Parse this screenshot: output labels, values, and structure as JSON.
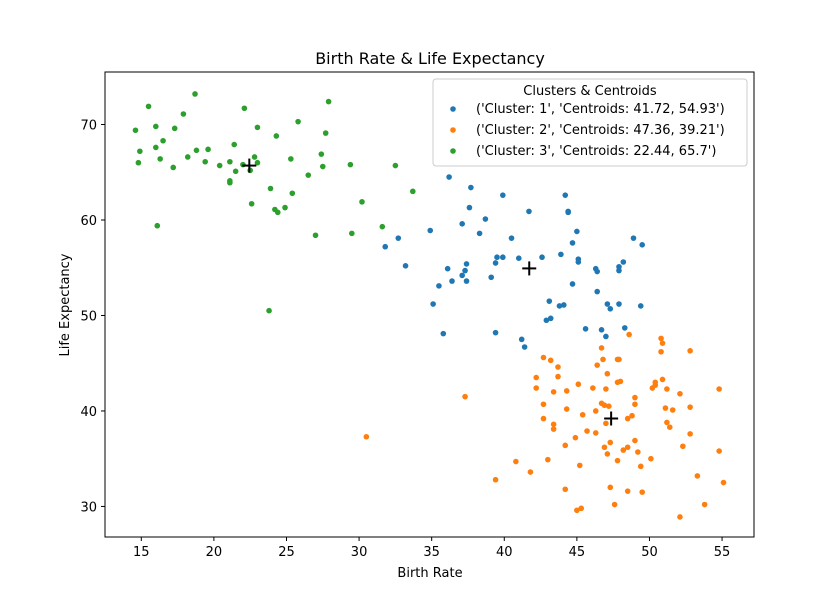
{
  "chart_data": {
    "type": "scatter",
    "title": "Birth Rate & Life Expectancy",
    "xlabel": "Birth Rate",
    "ylabel": "Life Expectancy",
    "xlim": [
      12.5,
      57.2
    ],
    "ylim": [
      26.8,
      75.5
    ],
    "xticks": [
      15,
      20,
      25,
      30,
      35,
      40,
      45,
      50,
      55
    ],
    "yticks": [
      30,
      40,
      50,
      60,
      70
    ],
    "grid": false,
    "legend": {
      "title": "Clusters & Centroids",
      "position": "top-right"
    },
    "series": [
      {
        "name": "('Cluster: 1', 'Centroids: 41.72, 54.93')",
        "color": "#1f77b4",
        "centroid": [
          41.72,
          54.93
        ],
        "points": [
          [
            36.2,
            64.5
          ],
          [
            37.7,
            63.4
          ],
          [
            39.9,
            62.6
          ],
          [
            44.2,
            62.6
          ],
          [
            44.4,
            60.9
          ],
          [
            44.4,
            60.8
          ],
          [
            41.7,
            60.9
          ],
          [
            37.6,
            61.3
          ],
          [
            38.7,
            60.1
          ],
          [
            37.1,
            59.6
          ],
          [
            38.3,
            58.6
          ],
          [
            34.9,
            58.9
          ],
          [
            32.7,
            58.1
          ],
          [
            31.8,
            57.2
          ],
          [
            40.5,
            58.1
          ],
          [
            44.7,
            57.6
          ],
          [
            45.0,
            58.8
          ],
          [
            48.9,
            58.1
          ],
          [
            49.5,
            57.4
          ],
          [
            36.1,
            54.9
          ],
          [
            37.4,
            55.4
          ],
          [
            37.3,
            54.7
          ],
          [
            37.1,
            54.2
          ],
          [
            36.4,
            53.6
          ],
          [
            37.4,
            53.6
          ],
          [
            35.5,
            53.1
          ],
          [
            39.5,
            56.1
          ],
          [
            39.9,
            56.1
          ],
          [
            39.4,
            55.5
          ],
          [
            41.0,
            56.0
          ],
          [
            42.6,
            56.1
          ],
          [
            43.9,
            56.4
          ],
          [
            45.1,
            55.9
          ],
          [
            45.1,
            55.6
          ],
          [
            46.3,
            54.9
          ],
          [
            46.4,
            54.6
          ],
          [
            47.9,
            55.1
          ],
          [
            48.2,
            55.6
          ],
          [
            47.9,
            54.7
          ],
          [
            33.2,
            55.2
          ],
          [
            39.1,
            54.0
          ],
          [
            44.7,
            53.3
          ],
          [
            46.4,
            52.5
          ],
          [
            35.1,
            51.2
          ],
          [
            43.1,
            51.5
          ],
          [
            43.8,
            51.0
          ],
          [
            44.1,
            51.1
          ],
          [
            47.1,
            51.2
          ],
          [
            47.3,
            50.7
          ],
          [
            47.9,
            51.2
          ],
          [
            49.4,
            51.0
          ],
          [
            42.9,
            49.5
          ],
          [
            43.2,
            49.7
          ],
          [
            48.3,
            48.7
          ],
          [
            45.6,
            48.6
          ],
          [
            46.7,
            48.5
          ],
          [
            35.8,
            48.1
          ],
          [
            39.4,
            48.2
          ],
          [
            47.0,
            47.8
          ],
          [
            41.2,
            47.5
          ],
          [
            41.4,
            46.7
          ]
        ]
      },
      {
        "name": "('Cluster: 2', 'Centroids: 47.36, 39.21')",
        "color": "#ff7f0e",
        "centroid": [
          47.36,
          39.21
        ],
        "points": [
          [
            48.6,
            48.0
          ],
          [
            50.8,
            47.6
          ],
          [
            50.9,
            47.1
          ],
          [
            50.8,
            46.2
          ],
          [
            46.7,
            46.6
          ],
          [
            52.8,
            46.3
          ],
          [
            46.8,
            45.4
          ],
          [
            47.8,
            45.4
          ],
          [
            47.9,
            45.4
          ],
          [
            42.7,
            45.6
          ],
          [
            43.2,
            45.3
          ],
          [
            43.7,
            44.6
          ],
          [
            46.4,
            44.8
          ],
          [
            47.1,
            43.9
          ],
          [
            43.7,
            43.6
          ],
          [
            42.2,
            43.5
          ],
          [
            50.4,
            43.0
          ],
          [
            50.2,
            42.4
          ],
          [
            50.4,
            42.7
          ],
          [
            50.9,
            43.3
          ],
          [
            51.2,
            42.3
          ],
          [
            47.8,
            43.0
          ],
          [
            48.0,
            43.1
          ],
          [
            45.1,
            42.8
          ],
          [
            46.1,
            42.4
          ],
          [
            47.0,
            42.3
          ],
          [
            42.2,
            42.4
          ],
          [
            43.4,
            42.0
          ],
          [
            44.3,
            42.1
          ],
          [
            52.1,
            41.8
          ],
          [
            49.0,
            41.4
          ],
          [
            54.8,
            42.3
          ],
          [
            46.7,
            40.8
          ],
          [
            46.9,
            40.6
          ],
          [
            47.2,
            40.5
          ],
          [
            49.0,
            40.7
          ],
          [
            42.7,
            40.7
          ],
          [
            44.3,
            40.2
          ],
          [
            46.3,
            40.0
          ],
          [
            45.4,
            39.6
          ],
          [
            48.5,
            39.2
          ],
          [
            48.8,
            39.5
          ],
          [
            51.1,
            40.3
          ],
          [
            51.6,
            40.1
          ],
          [
            52.8,
            40.4
          ],
          [
            42.7,
            39.2
          ],
          [
            47.0,
            38.7
          ],
          [
            51.2,
            38.8
          ],
          [
            51.4,
            38.3
          ],
          [
            43.4,
            38.6
          ],
          [
            43.4,
            38.1
          ],
          [
            45.7,
            37.9
          ],
          [
            46.3,
            37.7
          ],
          [
            52.8,
            37.6
          ],
          [
            47.3,
            36.7
          ],
          [
            49.0,
            36.9
          ],
          [
            52.3,
            36.3
          ],
          [
            44.2,
            36.4
          ],
          [
            46.9,
            36.2
          ],
          [
            48.5,
            36.2
          ],
          [
            48.2,
            35.9
          ],
          [
            49.2,
            35.7
          ],
          [
            47.1,
            35.5
          ],
          [
            54.8,
            35.8
          ],
          [
            44.9,
            37.2
          ],
          [
            50.1,
            35.0
          ],
          [
            43.0,
            34.9
          ],
          [
            45.2,
            34.3
          ],
          [
            49.4,
            34.2
          ],
          [
            40.8,
            34.7
          ],
          [
            41.8,
            33.6
          ],
          [
            47.8,
            34.8
          ],
          [
            53.3,
            33.2
          ],
          [
            39.4,
            32.8
          ],
          [
            47.3,
            32.0
          ],
          [
            44.2,
            31.8
          ],
          [
            48.5,
            31.6
          ],
          [
            49.5,
            31.5
          ],
          [
            55.1,
            32.5
          ],
          [
            47.6,
            30.2
          ],
          [
            45.3,
            29.8
          ],
          [
            45.0,
            29.6
          ],
          [
            53.8,
            30.2
          ],
          [
            52.1,
            28.9
          ],
          [
            30.5,
            37.3
          ],
          [
            37.3,
            41.5
          ]
        ]
      },
      {
        "name": "('Cluster: 3', 'Centroids: 22.44, 65.7')",
        "color": "#2ca02c",
        "centroid": [
          22.44,
          65.7
        ],
        "points": [
          [
            18.7,
            73.2
          ],
          [
            15.5,
            71.9
          ],
          [
            22.1,
            71.7
          ],
          [
            17.9,
            71.1
          ],
          [
            27.9,
            72.4
          ],
          [
            14.6,
            69.4
          ],
          [
            16.0,
            69.8
          ],
          [
            17.3,
            69.6
          ],
          [
            23.0,
            69.7
          ],
          [
            25.8,
            70.3
          ],
          [
            27.7,
            69.1
          ],
          [
            24.3,
            68.8
          ],
          [
            16.5,
            68.3
          ],
          [
            14.9,
            67.2
          ],
          [
            18.8,
            67.3
          ],
          [
            19.6,
            67.4
          ],
          [
            21.4,
            67.9
          ],
          [
            22.8,
            66.6
          ],
          [
            16.0,
            67.6
          ],
          [
            27.4,
            66.9
          ],
          [
            16.3,
            66.4
          ],
          [
            18.2,
            66.6
          ],
          [
            19.4,
            66.1
          ],
          [
            20.4,
            65.7
          ],
          [
            21.1,
            66.1
          ],
          [
            21.5,
            65.1
          ],
          [
            22.0,
            65.8
          ],
          [
            22.5,
            65.2
          ],
          [
            23.0,
            66.0
          ],
          [
            25.3,
            66.4
          ],
          [
            29.4,
            65.8
          ],
          [
            17.2,
            65.5
          ],
          [
            27.5,
            65.6
          ],
          [
            32.5,
            65.7
          ],
          [
            14.8,
            66.0
          ],
          [
            26.5,
            64.7
          ],
          [
            21.1,
            63.9
          ],
          [
            21.1,
            64.1
          ],
          [
            23.9,
            63.3
          ],
          [
            33.7,
            63.0
          ],
          [
            25.4,
            62.8
          ],
          [
            22.6,
            61.7
          ],
          [
            24.2,
            61.1
          ],
          [
            24.4,
            60.8
          ],
          [
            24.9,
            61.3
          ],
          [
            30.2,
            61.9
          ],
          [
            31.6,
            59.3
          ],
          [
            16.1,
            59.4
          ],
          [
            27.0,
            58.4
          ],
          [
            29.5,
            58.6
          ],
          [
            23.8,
            50.5
          ]
        ]
      }
    ]
  }
}
